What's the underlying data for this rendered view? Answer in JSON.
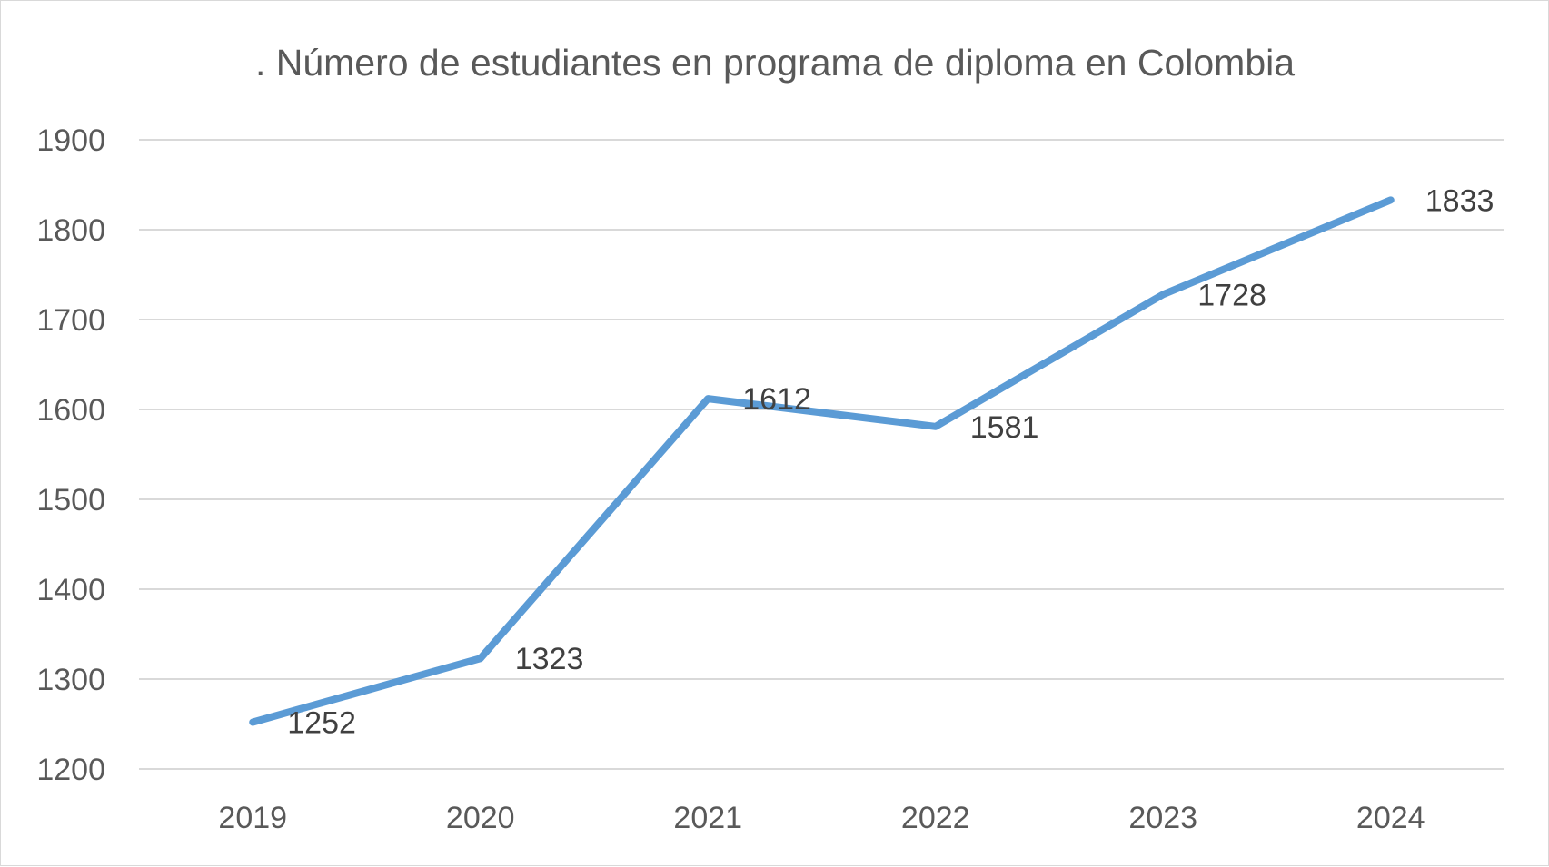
{
  "chart_data": {
    "type": "line",
    "title": ". Número de estudiantes en programa de diploma en Colombia",
    "categories": [
      "2019",
      "2020",
      "2021",
      "2022",
      "2023",
      "2024"
    ],
    "series": [
      {
        "values": [
          1252,
          1323,
          1612,
          1581,
          1728,
          1833
        ],
        "color": "#5b9bd5"
      }
    ],
    "data_labels": [
      "1252",
      "1323",
      "1612",
      "1581",
      "1728",
      "1833"
    ],
    "ylim": [
      1200,
      1900
    ],
    "yticks": [
      1200,
      1300,
      1400,
      1500,
      1600,
      1700,
      1800,
      1900
    ],
    "ytick_labels": [
      "1200",
      "1300",
      "1400",
      "1500",
      "1600",
      "1700",
      "1800",
      "1900"
    ],
    "grid": true,
    "legend": false,
    "xlabel": "",
    "ylabel": ""
  }
}
